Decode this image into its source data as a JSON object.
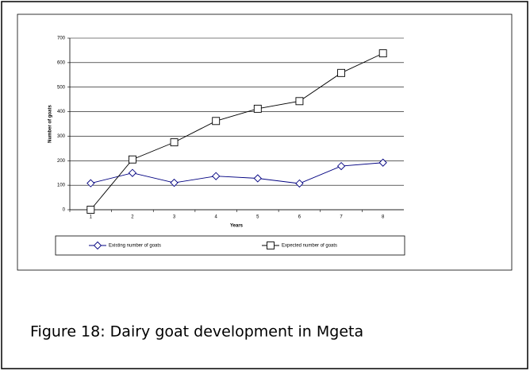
{
  "chart_data": {
    "type": "line",
    "caption": "Figure 18: Dairy goat development in Mgeta",
    "xlabel": "Years",
    "ylabel": "Number of goats",
    "categories": [
      "1",
      "2",
      "3",
      "4",
      "5",
      "6",
      "7",
      "8"
    ],
    "series": [
      {
        "name": "Existing number of goats",
        "color": "#000080",
        "marker": "diamond",
        "values": [
          108,
          150,
          110,
          137,
          128,
          107,
          178,
          192
        ]
      },
      {
        "name": "Expected number of goats",
        "color": "#000000",
        "marker": "square",
        "values": [
          0,
          205,
          275,
          362,
          412,
          443,
          558,
          638
        ]
      }
    ],
    "ylim": [
      0,
      700
    ],
    "yticks": [
      0,
      100,
      200,
      300,
      400,
      500,
      600,
      700
    ],
    "grid": true,
    "legend": "bottom"
  }
}
